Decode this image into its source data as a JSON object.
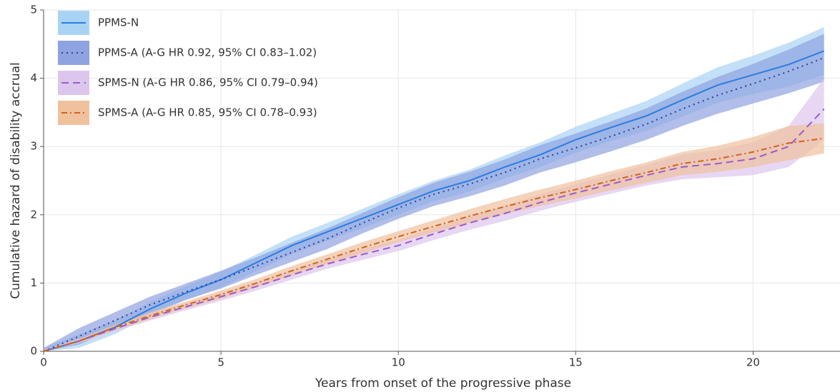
{
  "chart_data": {
    "type": "line",
    "xlabel": "Years from onset of the progressive phase",
    "ylabel": "Cumulative hazard of disability accrual",
    "x": [
      0,
      1,
      2,
      3,
      4,
      5,
      6,
      7,
      8,
      9,
      10,
      11,
      12,
      13,
      14,
      15,
      16,
      17,
      18,
      19,
      20,
      21,
      22
    ],
    "xlim": [
      0,
      22.45
    ],
    "ylim": [
      0,
      5
    ],
    "xticks": [
      0,
      5,
      10,
      15,
      20
    ],
    "yticks": [
      0,
      1,
      2,
      3,
      4,
      5
    ],
    "grid": true,
    "legend": "upper left",
    "series": [
      {
        "name": "PPMS-N",
        "color": "#2a7de1",
        "band_color": "#a9d3f5",
        "dash": "solid",
        "values": [
          0,
          0.15,
          0.35,
          0.62,
          0.85,
          1.05,
          1.3,
          1.55,
          1.75,
          1.95,
          2.15,
          2.35,
          2.5,
          2.7,
          2.88,
          3.1,
          3.28,
          3.45,
          3.68,
          3.9,
          4.05,
          4.2,
          4.4
        ],
        "lower": [
          0,
          0.05,
          0.25,
          0.52,
          0.75,
          0.93,
          1.18,
          1.42,
          1.62,
          1.81,
          2.0,
          2.2,
          2.34,
          2.53,
          2.7,
          2.91,
          3.08,
          3.23,
          3.44,
          3.64,
          3.77,
          3.88,
          4.05
        ],
        "upper": [
          0.05,
          0.25,
          0.45,
          0.72,
          0.95,
          1.17,
          1.42,
          1.68,
          1.88,
          2.09,
          2.3,
          2.5,
          2.66,
          2.87,
          3.06,
          3.29,
          3.48,
          3.67,
          3.92,
          4.16,
          4.33,
          4.52,
          4.75
        ]
      },
      {
        "name": "PPMS-A (A-G HR 0.92, 95% CI 0.83–1.02)",
        "color": "#2c3e9e",
        "band_color": "#8ea3df",
        "dash": "dotted",
        "values": [
          0,
          0.22,
          0.45,
          0.68,
          0.87,
          1.05,
          1.25,
          1.45,
          1.65,
          1.88,
          2.1,
          2.3,
          2.45,
          2.62,
          2.82,
          2.98,
          3.15,
          3.33,
          3.55,
          3.75,
          3.92,
          4.1,
          4.3
        ],
        "lower": [
          0,
          0.1,
          0.33,
          0.56,
          0.75,
          0.92,
          1.12,
          1.31,
          1.5,
          1.73,
          1.94,
          2.13,
          2.27,
          2.43,
          2.62,
          2.77,
          2.93,
          3.1,
          3.3,
          3.48,
          3.63,
          3.78,
          3.95
        ],
        "upper": [
          0.05,
          0.34,
          0.57,
          0.8,
          0.99,
          1.18,
          1.38,
          1.59,
          1.8,
          2.03,
          2.26,
          2.47,
          2.63,
          2.81,
          3.02,
          3.19,
          3.37,
          3.56,
          3.8,
          4.02,
          4.21,
          4.42,
          4.65
        ]
      },
      {
        "name": "SPMS-N (A-G HR 0.86, 95% CI 0.79–0.94)",
        "color": "#9b5cc9",
        "band_color": "#ddc6ee",
        "dash": "dashed",
        "values": [
          0,
          0.15,
          0.33,
          0.5,
          0.65,
          0.8,
          0.95,
          1.12,
          1.28,
          1.42,
          1.55,
          1.72,
          1.88,
          2.02,
          2.18,
          2.32,
          2.45,
          2.58,
          2.7,
          2.75,
          2.82,
          3.0,
          3.55
        ],
        "lower": [
          0,
          0.12,
          0.29,
          0.45,
          0.6,
          0.74,
          0.89,
          1.05,
          1.21,
          1.34,
          1.47,
          1.63,
          1.78,
          1.91,
          2.06,
          2.19,
          2.31,
          2.43,
          2.52,
          2.55,
          2.58,
          2.7,
          3.1
        ],
        "upper": [
          0.02,
          0.18,
          0.37,
          0.55,
          0.7,
          0.86,
          1.01,
          1.19,
          1.35,
          1.5,
          1.63,
          1.81,
          1.98,
          2.13,
          2.3,
          2.45,
          2.59,
          2.73,
          2.88,
          2.95,
          3.06,
          3.3,
          4.0
        ]
      },
      {
        "name": "SPMS-A (A-G HR 0.85, 95% CI 0.78–0.93)",
        "color": "#d0621c",
        "band_color": "#f0c19d",
        "dash": "dashdot",
        "values": [
          0,
          0.15,
          0.35,
          0.52,
          0.68,
          0.83,
          1.0,
          1.18,
          1.35,
          1.52,
          1.68,
          1.83,
          1.98,
          2.12,
          2.25,
          2.37,
          2.5,
          2.62,
          2.75,
          2.82,
          2.92,
          3.05,
          3.12
        ],
        "lower": [
          0,
          0.12,
          0.31,
          0.47,
          0.63,
          0.77,
          0.94,
          1.11,
          1.28,
          1.44,
          1.6,
          1.74,
          1.88,
          2.01,
          2.13,
          2.24,
          2.36,
          2.47,
          2.58,
          2.63,
          2.7,
          2.8,
          2.9
        ],
        "upper": [
          0.02,
          0.18,
          0.39,
          0.57,
          0.73,
          0.89,
          1.06,
          1.25,
          1.42,
          1.6,
          1.76,
          1.92,
          2.08,
          2.23,
          2.37,
          2.5,
          2.64,
          2.77,
          2.92,
          3.01,
          3.14,
          3.3,
          3.34
        ]
      }
    ]
  }
}
